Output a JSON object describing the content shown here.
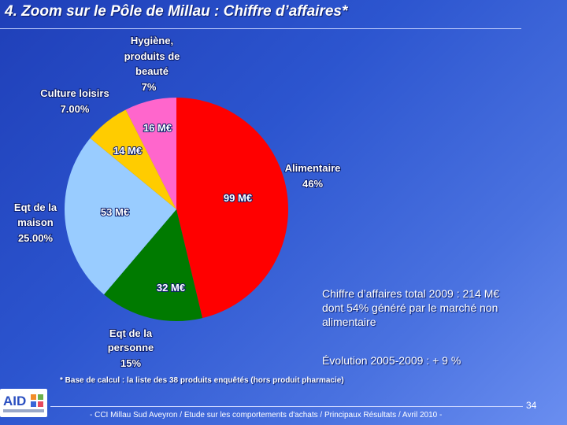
{
  "slide": {
    "title": "4. Zoom sur le Pôle de Millau : Chiffre d’affaires*",
    "summary_line1": "Chiffre d’affaires total 2009 : 214 M€",
    "summary_line2": "dont 54% généré par le marché non",
    "summary_line3": "alimentaire",
    "evolution": "Évolution 2005-2009 : + 9 %",
    "footnote": "* Base de calcul : la liste des 38 produits enquêtés (hors produit pharmacie)",
    "page_number": "34",
    "footer": "- CCI Millau Sud Aveyron / Etude sur les comportements d'achats / Principaux Résultats / Avril 2010 -",
    "logo_text": "AID"
  },
  "colors": {
    "alimentaire": "#ff0000",
    "personne": "#007a00",
    "maison": "#99ccff",
    "culture": "#ffcc00",
    "hygiene": "#ff66cc"
  },
  "chart_data": {
    "type": "pie",
    "title": "",
    "slices": [
      {
        "key": "alimentaire",
        "label_lines": [
          "Alimentaire",
          "46%"
        ],
        "value_label": "99 M€",
        "value": 99,
        "percent": 46
      },
      {
        "key": "personne",
        "label_lines": [
          "Eqt de la",
          "personne",
          "15%"
        ],
        "value_label": "32 M€",
        "value": 32,
        "percent": 15
      },
      {
        "key": "maison",
        "label_lines": [
          "Eqt de la",
          "maison",
          "25.00%"
        ],
        "value_label": "53 M€",
        "value": 53,
        "percent": 25
      },
      {
        "key": "culture",
        "label_lines": [
          "Culture loisirs",
          "7.00%"
        ],
        "value_label": "14 M€",
        "value": 14,
        "percent": 7
      },
      {
        "key": "hygiene",
        "label_lines": [
          "Hygiène,",
          "produits de",
          "beauté",
          "7%"
        ],
        "value_label": "16 M€",
        "value": 16,
        "percent": 7
      }
    ]
  }
}
